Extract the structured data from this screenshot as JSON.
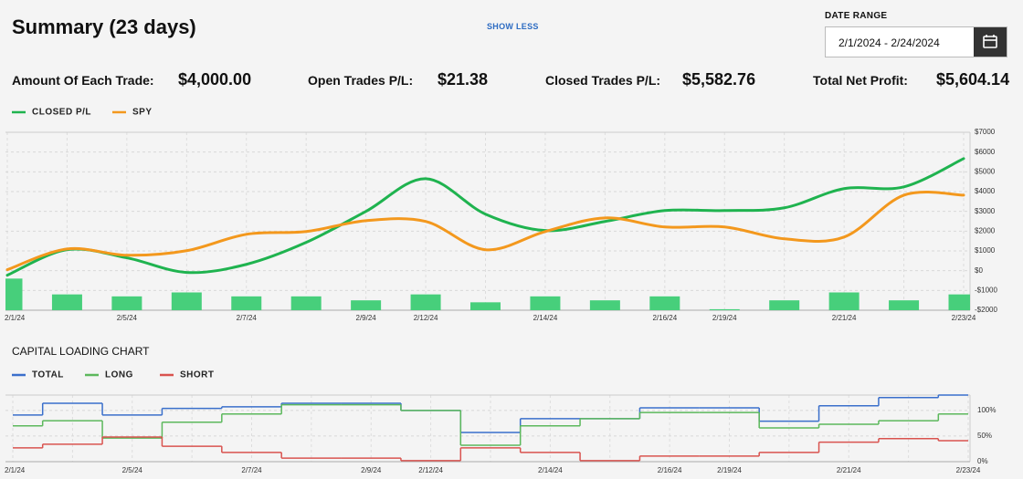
{
  "header": {
    "title": "Summary (23 days)",
    "toggle": "SHOW LESS"
  },
  "date_range": {
    "label": "DATE RANGE",
    "value": "2/1/2024 - 2/24/2024"
  },
  "stats": [
    {
      "label": "Amount Of Each Trade:",
      "value": "$4,000.00"
    },
    {
      "label": "Open Trades P/L:",
      "value": "$21.38"
    },
    {
      "label": "Closed Trades P/L:",
      "value": "$5,582.76"
    },
    {
      "label": "Total Net Profit:",
      "value": "$5,604.14"
    }
  ],
  "chart_data": [
    {
      "type": "line",
      "smooth": true,
      "grid": true,
      "categories": [
        "2/1/24",
        null,
        "2/5/24",
        null,
        "2/7/24",
        null,
        "2/9/24",
        "2/12/24",
        null,
        "2/14/24",
        null,
        "2/16/24",
        "2/19/24",
        null,
        "2/21/24",
        null,
        "2/23/24"
      ],
      "series": [
        {
          "name": "CLOSED P/L",
          "color": "#1fb34f",
          "values": [
            -230,
            1060,
            650,
            -90,
            320,
            1430,
            3000,
            4650,
            2860,
            2030,
            2490,
            3040,
            3040,
            3180,
            4150,
            4240,
            5670
          ]
        },
        {
          "name": "SPY",
          "color": "#f3981d",
          "values": [
            50,
            1100,
            780,
            1010,
            1840,
            1980,
            2530,
            2490,
            1060,
            1980,
            2670,
            2210,
            2210,
            1610,
            1700,
            3820,
            3820
          ]
        },
        {
          "type": "bar",
          "color": "#47cf7b",
          "values": [
            -400,
            -1200,
            -1300,
            -1100,
            -1300,
            -1300,
            -1500,
            -1200,
            -1600,
            -1300,
            -1500,
            -1300,
            -1950,
            -1500,
            -1100,
            -1500,
            -1200
          ]
        }
      ],
      "ylim": [
        -2000,
        7000
      ],
      "yticks": [
        {
          "value": 7000,
          "label": "$7000"
        },
        {
          "value": 6000,
          "label": "$6000"
        },
        {
          "value": 5000,
          "label": "$5000"
        },
        {
          "value": 4000,
          "label": "$4000"
        },
        {
          "value": 3000,
          "label": "$3000"
        },
        {
          "value": 2000,
          "label": "$2000"
        },
        {
          "value": 1000,
          "label": "$1000"
        },
        {
          "value": 0,
          "label": "$0"
        },
        {
          "value": -1000,
          "label": "-$1000"
        },
        {
          "value": -2000,
          "label": "-$2000"
        }
      ]
    },
    {
      "type": "step",
      "title": "CAPITAL LOADING CHART",
      "grid": true,
      "categories": [
        "2/1/24",
        null,
        "2/5/24",
        null,
        "2/7/24",
        null,
        "2/9/24",
        "2/12/24",
        null,
        "2/14/24",
        null,
        "2/16/24",
        "2/19/24",
        null,
        "2/21/24",
        null,
        "2/23/24"
      ],
      "series": [
        {
          "name": "TOTAL",
          "color": "#3a6fcb",
          "values": [
            91,
            114,
            91,
            104,
            107,
            114,
            114,
            100,
            57,
            84,
            84,
            105,
            105,
            79,
            109,
            125,
            130
          ]
        },
        {
          "name": "LONG",
          "color": "#5cb85c",
          "values": [
            70,
            80,
            46,
            77,
            93,
            111,
            111,
            100,
            32,
            70,
            84,
            96,
            96,
            66,
            73,
            80,
            93
          ]
        },
        {
          "name": "SHORT",
          "color": "#d9534f",
          "values": [
            27,
            34,
            48,
            30,
            18,
            7,
            7,
            2,
            27,
            18,
            2,
            11,
            11,
            18,
            38,
            45,
            41
          ]
        }
      ],
      "ylim": [
        0,
        130
      ],
      "yticks": [
        {
          "value": 100,
          "label": "100%"
        },
        {
          "value": 50,
          "label": "50%"
        },
        {
          "value": 0,
          "label": "0%"
        }
      ]
    }
  ]
}
